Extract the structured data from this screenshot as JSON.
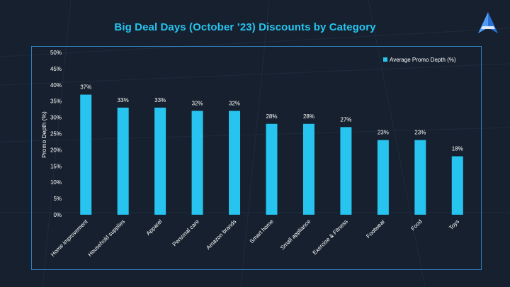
{
  "page": {
    "title": "Big Deal Days (October ’23) Discounts by Category",
    "logo_icon": "triangle-a-logo-icon"
  },
  "colors": {
    "background": "#16202e",
    "title": "#27c4ef",
    "bar": "#27c4ef",
    "frame": "#2f7fbf",
    "text": "#ffffff"
  },
  "chart_data": {
    "type": "bar",
    "title": "Big Deal Days (October ’23) Discounts by Category",
    "xlabel": "",
    "ylabel": "Promo Depth (%)",
    "ylim": [
      0,
      50
    ],
    "ytick_step": 5,
    "ytick_labels": [
      "0%",
      "5%",
      "10%",
      "15%",
      "20%",
      "25%",
      "30%",
      "35%",
      "40%",
      "45%",
      "50%"
    ],
    "grid": false,
    "legend_position": "top-right",
    "categories": [
      "Home improvement",
      "Household supplies",
      "Apparel",
      "Personal care",
      "Amazon brands",
      "Smart home",
      "Small appliance",
      "Exercise & Fitness",
      "Footwear",
      "Food",
      "Toys"
    ],
    "series": [
      {
        "name": "Average Promo Depth (%)",
        "values": [
          37,
          33,
          33,
          32,
          32,
          28,
          28,
          27,
          23,
          23,
          18
        ],
        "labels": [
          "37%",
          "33%",
          "33%",
          "32%",
          "32%",
          "28%",
          "28%",
          "27%",
          "23%",
          "23%",
          "18%"
        ]
      }
    ]
  }
}
